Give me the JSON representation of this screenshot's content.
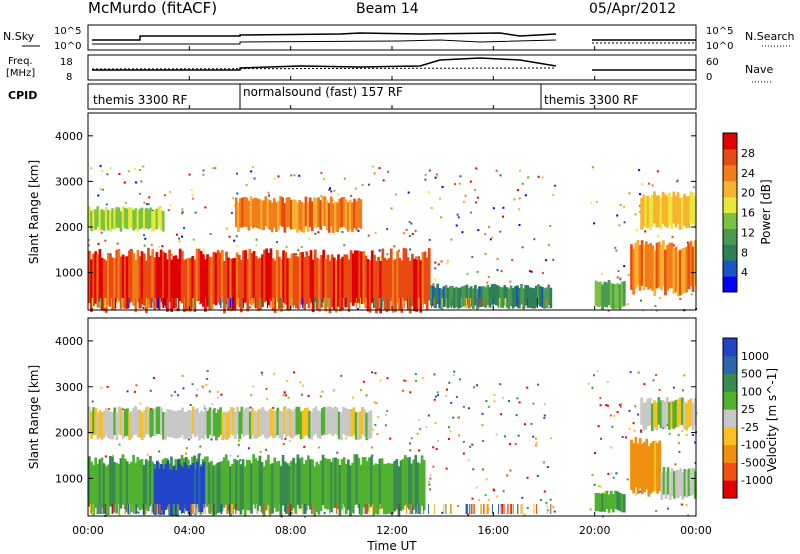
{
  "header": {
    "title": "McMurdo (fitACF)",
    "beam": "Beam 14",
    "date": "05/Apr/2012"
  },
  "params": {
    "nsky_label": "N.Sky",
    "nsearch_label": "N.Search",
    "freq_label_line1": "Freq.",
    "freq_label_line2": "[MHz]",
    "nave_label": "Nave",
    "cpid_label": "CPID",
    "noise_ticks": [
      "10^5",
      "10^0"
    ],
    "noise_ticks_right": [
      "10^5",
      "10^0"
    ],
    "freq_ticks": [
      "18",
      "8"
    ],
    "nave_ticks": [
      "60",
      "0"
    ],
    "cpid_segments": [
      {
        "label": "themis 3300 RF",
        "start": "00:00",
        "end": "06:00"
      },
      {
        "label": "normalsound (fast) 157 RF",
        "start": "06:00",
        "end": "18:00"
      },
      {
        "label": "themis 3300 RF",
        "start": "18:00",
        "end": "24:00"
      }
    ]
  },
  "chart_data": [
    {
      "type": "heatmap",
      "title": "Power",
      "xlabel": "Time UT",
      "ylabel": "Slant Range [km]",
      "xticks": [
        "00:00",
        "04:00",
        "08:00",
        "12:00",
        "16:00",
        "20:00",
        "00:00"
      ],
      "yticks": [
        "1000",
        "2000",
        "3000",
        "4000"
      ],
      "xlim_hours": [
        0,
        24
      ],
      "ylim_km": [
        180,
        4500
      ],
      "colorbar": {
        "label": "Power [dB]",
        "ticks": [
          "28",
          "24",
          "20",
          "16",
          "12",
          "8",
          "4"
        ],
        "range": [
          0,
          30
        ],
        "colors": [
          "#0000ff",
          "#1a55c8",
          "#2f7f5a",
          "#4a9a50",
          "#7ac242",
          "#e8e83a",
          "#f8b230",
          "#f07d1a",
          "#e84a12",
          "#e00000"
        ]
      },
      "data_gap_hours": [
        18.4,
        19.7
      ],
      "bands": [
        {
          "t0": 0.0,
          "t1": 13.5,
          "r0": 250,
          "r1": 1400,
          "value": 26
        },
        {
          "t0": 0.0,
          "t1": 3.0,
          "r0": 1950,
          "r1": 2400,
          "value": 15
        },
        {
          "t0": 5.8,
          "t1": 10.8,
          "r0": 1950,
          "r1": 2600,
          "value": 22
        },
        {
          "t0": 13.5,
          "t1": 18.3,
          "r0": 250,
          "r1": 700,
          "value": 8
        },
        {
          "t0": 20.0,
          "t1": 21.2,
          "r0": 250,
          "r1": 800,
          "value": 12
        },
        {
          "t0": 21.4,
          "t1": 24.0,
          "r0": 600,
          "r1": 1600,
          "value": 22
        },
        {
          "t0": 21.8,
          "t1": 24.0,
          "r0": 2000,
          "r1": 2700,
          "value": 18
        }
      ]
    },
    {
      "type": "heatmap",
      "title": "Velocity",
      "xlabel": "Time UT",
      "ylabel": "Slant Range [km]",
      "xticks": [
        "00:00",
        "04:00",
        "08:00",
        "12:00",
        "16:00",
        "20:00",
        "00:00"
      ],
      "yticks": [
        "1000",
        "2000",
        "3000",
        "4000"
      ],
      "xlim_hours": [
        0,
        24
      ],
      "ylim_km": [
        180,
        4500
      ],
      "colorbar": {
        "label": "Velocity [m s^-1]",
        "ticks": [
          "1000",
          "500",
          "100",
          "25",
          "-25",
          "-100",
          "-500",
          "-1000"
        ],
        "range": [
          -1000,
          1000
        ],
        "colors": [
          "#e00000",
          "#f05010",
          "#f09010",
          "#f8c020",
          "#c8c8c8",
          "#50b030",
          "#3a8a50",
          "#2a66aa",
          "#2244c8"
        ]
      },
      "data_gap_hours": [
        18.4,
        19.7
      ],
      "bands": [
        {
          "t0": 0.0,
          "t1": 13.3,
          "r0": 300,
          "r1": 1400,
          "value": 300
        },
        {
          "t0": 2.6,
          "t1": 4.6,
          "r0": 300,
          "r1": 1300,
          "value": 900
        },
        {
          "t0": 0.0,
          "t1": 11.2,
          "r0": 1900,
          "r1": 2500,
          "value": 0
        },
        {
          "t0": 21.4,
          "t1": 22.6,
          "r0": 700,
          "r1": 1800,
          "value": -400
        },
        {
          "t0": 22.6,
          "t1": 24.0,
          "r0": 600,
          "r1": 1200,
          "value": 120
        },
        {
          "t0": 21.8,
          "t1": 24.0,
          "r0": 2100,
          "r1": 2700,
          "value": 0
        },
        {
          "t0": 20.0,
          "t1": 21.2,
          "r0": 300,
          "r1": 700,
          "value": 300
        }
      ]
    }
  ]
}
